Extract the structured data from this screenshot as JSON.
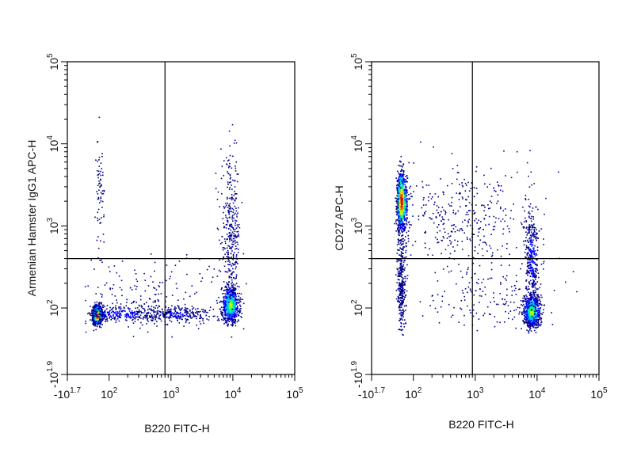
{
  "chart_data": [
    {
      "type": "scatter",
      "subtype": "flow-cytometry-density-dot-plot",
      "title": "",
      "xlabel": "B220 FITC-H",
      "ylabel": "Armenian Hamster IgG1 APC-H",
      "x_scale": "biexponential",
      "y_scale": "biexponential",
      "xlim": [
        -50,
        100000
      ],
      "ylim": [
        -80,
        100000
      ],
      "x_ticks": [
        {
          "base": "-10",
          "exp": "1.7",
          "value": -50
        },
        {
          "base": "10",
          "exp": "2",
          "value": 100
        },
        {
          "base": "10",
          "exp": "3",
          "value": 1000
        },
        {
          "base": "10",
          "exp": "4",
          "value": 10000
        },
        {
          "base": "10",
          "exp": "5",
          "value": 100000
        }
      ],
      "y_ticks": [
        {
          "base": "-10",
          "exp": "1.9",
          "value": -80
        },
        {
          "base": "10",
          "exp": "2",
          "value": 100
        },
        {
          "base": "10",
          "exp": "3",
          "value": 1000
        },
        {
          "base": "10",
          "exp": "4",
          "value": 10000
        },
        {
          "base": "10",
          "exp": "5",
          "value": 100000
        }
      ],
      "quadrant_gate": {
        "x": 800,
        "y": 400
      },
      "grid": false,
      "legend": "none",
      "colormap": [
        "#00008b",
        "#0000ff",
        "#00bfff",
        "#00ff80",
        "#c8ff00",
        "#ffd000",
        "#ff5000",
        "#d00000"
      ],
      "populations": [
        {
          "x": 55,
          "y": 80,
          "x_spread": 0.07,
          "y_spread": 0.07,
          "count": 900,
          "peak": 1.0
        },
        {
          "x": 150,
          "y": 85,
          "x_spread": 0.35,
          "y_spread": 0.06,
          "count": 250,
          "peak": 0.18
        },
        {
          "x": 1200,
          "y": 85,
          "x_spread": 0.3,
          "y_spread": 0.06,
          "count": 250,
          "peak": 0.15
        },
        {
          "x": 9000,
          "y": 110,
          "x_spread": 0.07,
          "y_spread": 0.12,
          "count": 700,
          "peak": 0.55
        },
        {
          "x": 9000,
          "y": 800,
          "x_spread": 0.08,
          "y_spread": 0.45,
          "count": 320,
          "peak": 0.12
        },
        {
          "x": 65,
          "y": 2500,
          "x_spread": 0.05,
          "y_spread": 0.35,
          "count": 70,
          "peak": 0.05
        },
        {
          "x": 400,
          "y": 150,
          "x_spread": 0.6,
          "y_spread": 0.25,
          "count": 150,
          "peak": 0.04
        }
      ]
    },
    {
      "type": "scatter",
      "subtype": "flow-cytometry-density-dot-plot",
      "title": "",
      "xlabel": "B220 FITC-H",
      "ylabel": "CD27 APC-H",
      "x_scale": "biexponential",
      "y_scale": "biexponential",
      "xlim": [
        -50,
        100000
      ],
      "ylim": [
        -80,
        100000
      ],
      "x_ticks": [
        {
          "base": "-10",
          "exp": "1.7",
          "value": -50
        },
        {
          "base": "10",
          "exp": "2",
          "value": 100
        },
        {
          "base": "10",
          "exp": "3",
          "value": 1000
        },
        {
          "base": "10",
          "exp": "4",
          "value": 10000
        },
        {
          "base": "10",
          "exp": "5",
          "value": 100000
        }
      ],
      "y_ticks": [
        {
          "base": "-10",
          "exp": "1.9",
          "value": -80
        },
        {
          "base": "10",
          "exp": "2",
          "value": 100
        },
        {
          "base": "10",
          "exp": "3",
          "value": 1000
        },
        {
          "base": "10",
          "exp": "4",
          "value": 10000
        },
        {
          "base": "10",
          "exp": "5",
          "value": 100000
        }
      ],
      "quadrant_gate": {
        "x": 900,
        "y": 400
      },
      "grid": false,
      "legend": "none",
      "colormap": [
        "#00008b",
        "#0000ff",
        "#00bfff",
        "#00ff80",
        "#c8ff00",
        "#ffd000",
        "#ff5000",
        "#d00000"
      ],
      "populations": [
        {
          "x": 55,
          "y": 2000,
          "x_spread": 0.07,
          "y_spread": 0.18,
          "count": 850,
          "peak": 1.0
        },
        {
          "x": 55,
          "y": 200,
          "x_spread": 0.06,
          "y_spread": 0.35,
          "count": 300,
          "peak": 0.12
        },
        {
          "x": 8000,
          "y": 90,
          "x_spread": 0.07,
          "y_spread": 0.12,
          "count": 700,
          "peak": 0.55
        },
        {
          "x": 8000,
          "y": 400,
          "x_spread": 0.06,
          "y_spread": 0.35,
          "count": 350,
          "peak": 0.18
        },
        {
          "x": 600,
          "y": 1200,
          "x_spread": 0.55,
          "y_spread": 0.3,
          "count": 350,
          "peak": 0.05
        },
        {
          "x": 1500,
          "y": 150,
          "x_spread": 0.45,
          "y_spread": 0.25,
          "count": 150,
          "peak": 0.04
        }
      ]
    }
  ]
}
